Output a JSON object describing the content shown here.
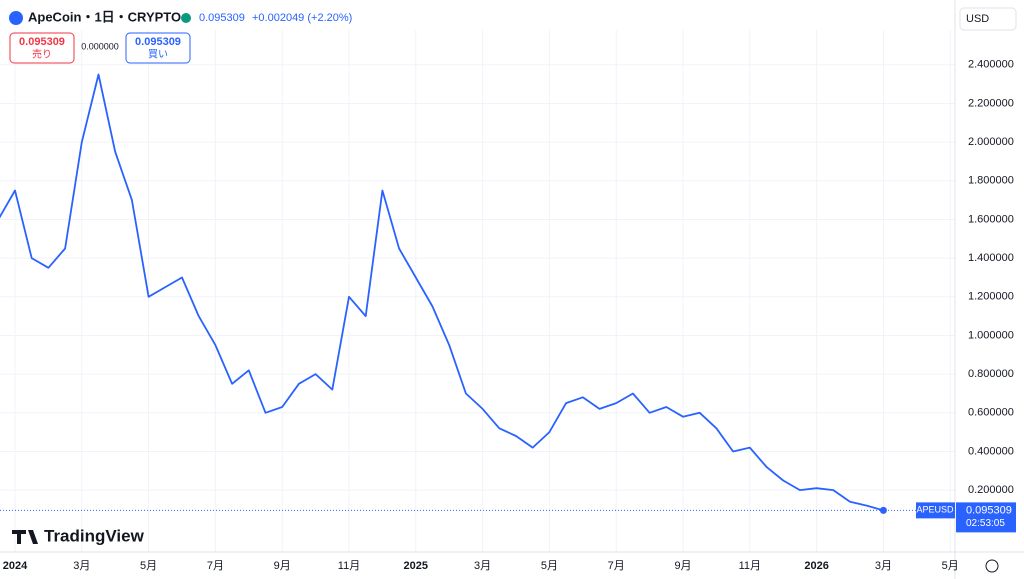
{
  "ui": {
    "title": "ApeCoin・1日・CRYPTO",
    "price": "0.095309",
    "change": "+0.002049 (+2.20%)",
    "sell_price": "0.095309",
    "sell_label": "売り",
    "spread": "0.000000",
    "buy_price": "0.095309",
    "buy_label": "買い",
    "currency": "USD",
    "tag_symbol": "APEUSD",
    "tag_price": "0.095309",
    "tag_countdown": "02:53:05",
    "logo": "TradingView"
  },
  "chart_data": {
    "type": "line",
    "categories": [
      null,
      "2024",
      null,
      null,
      null,
      "3月",
      null,
      null,
      null,
      "5月",
      null,
      null,
      null,
      "7月",
      null,
      null,
      null,
      "9月",
      null,
      null,
      null,
      "11月",
      null,
      null,
      null,
      "2025",
      null,
      null,
      null,
      "3月",
      null,
      null,
      null,
      "5月",
      null,
      null,
      null,
      "7月",
      null,
      null,
      null,
      "9月",
      null,
      null,
      null,
      "11月",
      null,
      null,
      null,
      "2026",
      null,
      null,
      null,
      "3月",
      null,
      null,
      null,
      "5月"
    ],
    "series": [
      {
        "name": "APEUSD",
        "color": "#2962ff",
        "values": [
          1.6,
          1.75,
          1.4,
          1.35,
          1.45,
          2.0,
          2.35,
          1.95,
          1.7,
          1.2,
          1.25,
          1.3,
          1.1,
          0.95,
          0.75,
          0.82,
          0.6,
          0.63,
          0.75,
          0.8,
          0.72,
          1.2,
          1.1,
          1.75,
          1.45,
          1.3,
          1.15,
          0.95,
          0.7,
          0.62,
          0.52,
          0.48,
          0.42,
          0.5,
          0.65,
          0.68,
          0.62,
          0.65,
          0.7,
          0.6,
          0.63,
          0.58,
          0.6,
          0.52,
          0.4,
          0.42,
          0.32,
          0.25,
          0.2,
          0.21,
          0.2,
          0.14,
          0.12,
          0.095309,
          null,
          null,
          null,
          null
        ]
      }
    ],
    "ylim": [
      -0.12,
      2.58
    ],
    "yticks": [
      {
        "value": 0.2,
        "label": "0.200000"
      },
      {
        "value": 0.4,
        "label": "0.400000"
      },
      {
        "value": 0.6,
        "label": "0.600000"
      },
      {
        "value": 0.8,
        "label": "0.800000"
      },
      {
        "value": 1.0,
        "label": "1.000000"
      },
      {
        "value": 1.2,
        "label": "1.200000"
      },
      {
        "value": 1.4,
        "label": "1.400000"
      },
      {
        "value": 1.6,
        "label": "1.600000"
      },
      {
        "value": 1.8,
        "label": "1.800000"
      },
      {
        "value": 2.0,
        "label": "2.000000"
      },
      {
        "value": 2.2,
        "label": "2.200000"
      },
      {
        "value": 2.4,
        "label": "2.400000"
      }
    ],
    "grid": true
  }
}
